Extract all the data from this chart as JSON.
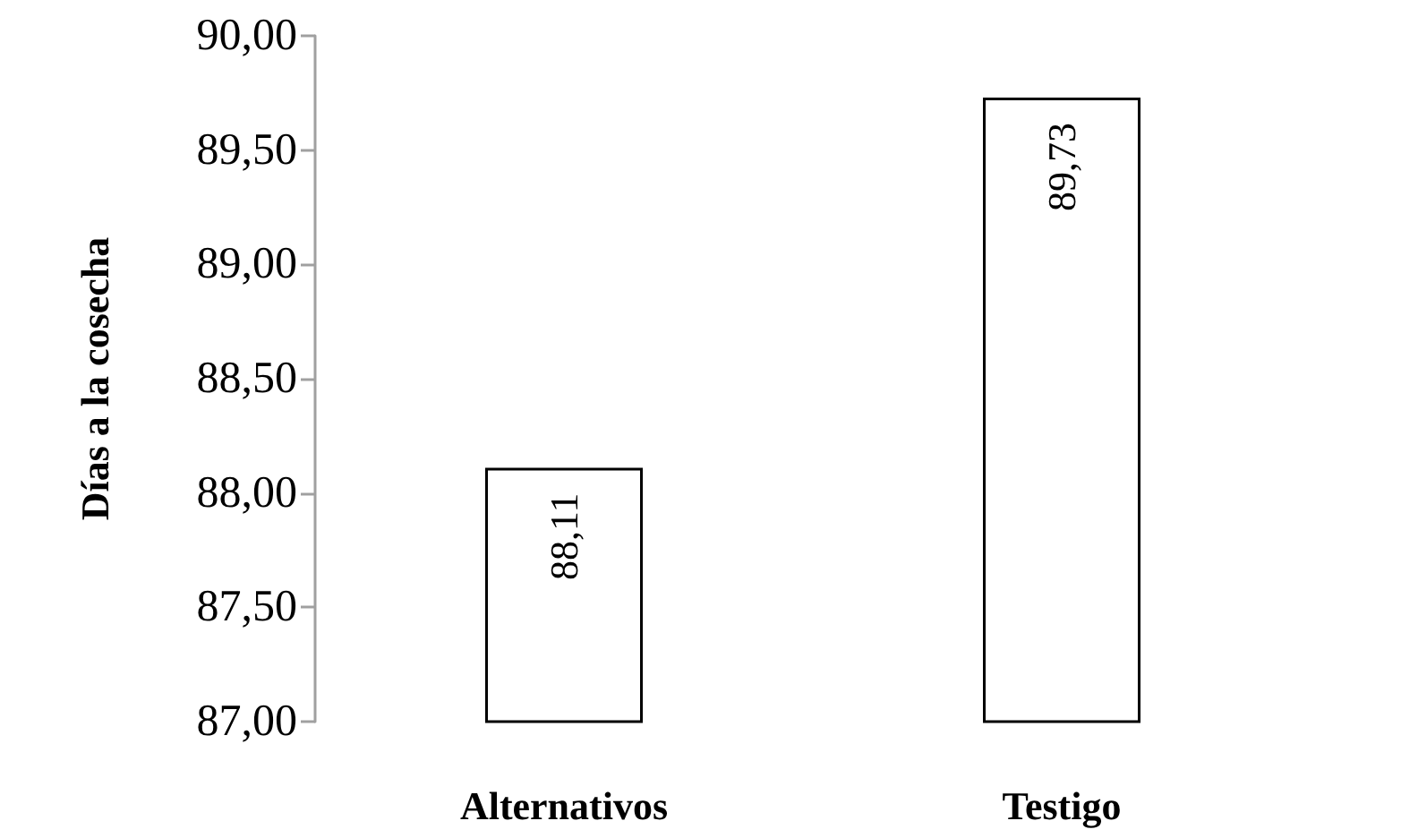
{
  "chart_data": {
    "type": "bar",
    "ylabel": "Días a la cosecha",
    "categories": [
      "Alternativos",
      "Testigo"
    ],
    "values": [
      88.11,
      89.73
    ],
    "color": "#ffffff",
    "value_labels": [
      "88,11",
      "89,73"
    ],
    "ylim": [
      87,
      90
    ],
    "yticks": [
      {
        "value": 87,
        "label": "87,00"
      },
      {
        "value": 87.5,
        "label": "87,50"
      },
      {
        "value": 88,
        "label": "88,00"
      },
      {
        "value": 88.5,
        "label": "88,50"
      },
      {
        "value": 89,
        "label": "89,00"
      },
      {
        "value": 89.5,
        "label": "89,50"
      },
      {
        "value": 90,
        "label": "90,00"
      }
    ],
    "grid": false
  }
}
